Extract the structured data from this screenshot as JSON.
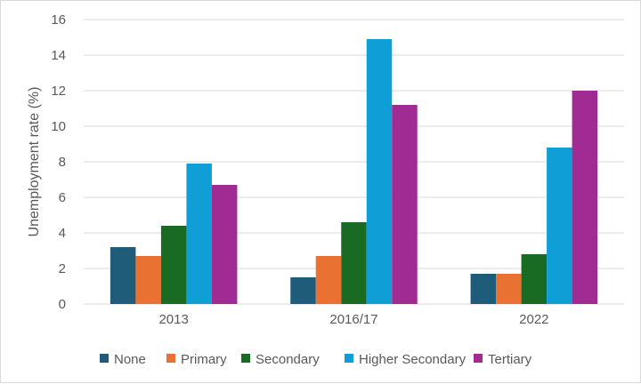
{
  "chart_data": {
    "type": "bar",
    "title": "",
    "xlabel": "",
    "ylabel": "Unemployment rate (%)",
    "categories": [
      "2013",
      "2016/17",
      "2022"
    ],
    "ylim": [
      0,
      16
    ],
    "yticks": [
      0,
      2,
      4,
      6,
      8,
      10,
      12,
      14,
      16
    ],
    "grid": true,
    "legend_position": "bottom",
    "series": [
      {
        "name": "None",
        "color": "#1f5c7a",
        "values": [
          3.2,
          1.5,
          1.7
        ]
      },
      {
        "name": "Primary",
        "color": "#e97132",
        "values": [
          2.7,
          2.7,
          1.7
        ]
      },
      {
        "name": "Secondary",
        "color": "#196b24",
        "values": [
          4.4,
          4.6,
          2.8
        ]
      },
      {
        "name": "Higher Secondary",
        "color": "#0f9ed5",
        "values": [
          7.9,
          14.9,
          8.8
        ]
      },
      {
        "name": "Tertiary",
        "color": "#a02b93",
        "values": [
          6.7,
          11.2,
          12.0
        ]
      }
    ]
  }
}
